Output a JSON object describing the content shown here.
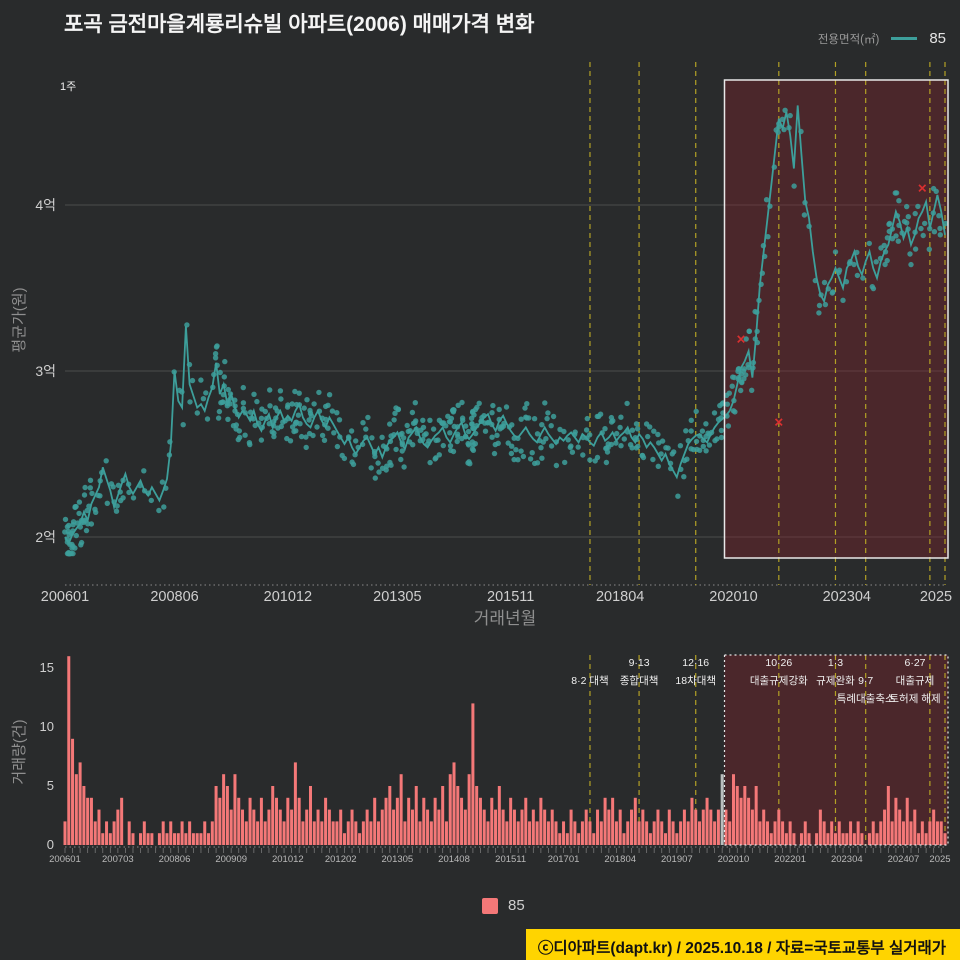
{
  "title": "포곡 금전마을계룡리슈빌 아파트(2006) 매매가격 변화",
  "corner_label": "1주",
  "legend_top": {
    "label": "전용면적(㎡)",
    "value": "85"
  },
  "legend_bottom": {
    "value": "85"
  },
  "footer": "ⓒ디아파트(dapt.kr) / 2025.10.18 / 자료=국토교통부 실거래가",
  "colors": {
    "background": "#292b2c",
    "teal": "#3d9f9b",
    "bar": "#f47878",
    "gray_bar": "#b9bdbd",
    "policy_line": "#b3a125",
    "grid": "#4a4c4d",
    "tick": "#cfcfcf",
    "vol_tick": "#b9b9b9",
    "highlight_fill": "rgba(150,30,42,0.32)",
    "highlight_border": "#e8e8e8",
    "red_x": "#d93030",
    "footer_bg": "#ffd400",
    "annotation_text": "#f0f0f0"
  },
  "chart_data": [
    {
      "type": "line",
      "series_name": "85",
      "unit": "억원",
      "ylabel": "평균가(원)",
      "xlabel": "거래년월",
      "x_start_month": "2006-01",
      "x_end_month": "2025-06",
      "y_ticks": [
        "2억",
        "3억",
        "4억"
      ],
      "y_tick_values_eok": [
        2,
        3,
        4
      ],
      "ylim_eok": [
        1.85,
        4.85
      ],
      "x_tick_labels": [
        "200601",
        "200806",
        "201012",
        "201305",
        "201511",
        "201804",
        "202010",
        "202304",
        "2025"
      ],
      "x_tick_months": [
        0,
        29,
        59,
        88,
        118,
        147,
        177,
        207,
        233
      ],
      "highlight_start_month_index": 177,
      "monthly_avg_eok": [
        2.0,
        1.96,
        2.02,
        2.05,
        2.08,
        2.15,
        2.1,
        2.2,
        2.25,
        2.3,
        2.42,
        2.35,
        2.28,
        2.18,
        2.25,
        2.32,
        2.38,
        2.3,
        2.26,
        2.3,
        2.34,
        2.28,
        2.25,
        2.3,
        2.26,
        2.22,
        2.28,
        2.35,
        2.55,
        3.0,
        2.82,
        2.78,
        3.27,
        2.92,
        2.85,
        2.78,
        2.8,
        2.76,
        2.84,
        2.9,
        3.05,
        2.86,
        2.92,
        2.8,
        2.86,
        2.78,
        2.72,
        2.76,
        2.74,
        2.7,
        2.76,
        2.68,
        2.64,
        2.7,
        2.74,
        2.66,
        2.72,
        2.76,
        2.7,
        2.73,
        2.7,
        2.76,
        2.8,
        2.72,
        2.68,
        2.66,
        2.72,
        2.76,
        2.7,
        2.66,
        2.72,
        2.68,
        2.64,
        2.6,
        2.56,
        2.6,
        2.54,
        2.5,
        2.54,
        2.58,
        2.6,
        2.55,
        2.5,
        2.54,
        2.48,
        2.54,
        2.58,
        2.6,
        2.63,
        2.57,
        2.53,
        2.6,
        2.63,
        2.66,
        2.6,
        2.56,
        2.54,
        2.58,
        2.61,
        2.63,
        2.66,
        2.6,
        2.57,
        2.62,
        2.66,
        2.69,
        2.62,
        2.59,
        2.62,
        2.66,
        2.69,
        2.72,
        2.74,
        2.68,
        2.64,
        2.7,
        2.73,
        2.68,
        2.64,
        2.61,
        2.6,
        2.63,
        2.66,
        2.62,
        2.59,
        2.57,
        2.62,
        2.66,
        2.62,
        2.59,
        2.56,
        2.6,
        2.58,
        2.61,
        2.63,
        2.6,
        2.57,
        2.62,
        2.6,
        2.57,
        2.55,
        2.6,
        2.63,
        2.58,
        2.6,
        2.63,
        2.58,
        2.61,
        2.63,
        2.66,
        2.6,
        2.57,
        2.62,
        2.59,
        2.54,
        2.57,
        2.54,
        2.5,
        2.46,
        2.5,
        2.44,
        2.4,
        2.36,
        2.44,
        2.5,
        2.56,
        2.59,
        2.61,
        2.62,
        2.59,
        2.57,
        2.62,
        2.66,
        2.69,
        2.71,
        2.73,
        2.76,
        2.82,
        2.92,
        3.02,
        3.06,
        3.12,
        2.96,
        3.22,
        3.52,
        3.72,
        3.92,
        4.12,
        4.32,
        4.52,
        4.46,
        4.56,
        4.42,
        4.22,
        4.6,
        4.3,
        4.02,
        3.92,
        3.72,
        3.56,
        3.46,
        3.42,
        3.52,
        3.56,
        3.62,
        3.56,
        3.5,
        3.62,
        3.66,
        3.72,
        3.63,
        3.58,
        3.66,
        3.72,
        3.62,
        3.56,
        3.66,
        3.72,
        3.76,
        3.86,
        3.96,
        3.9,
        3.8,
        3.86,
        3.76,
        3.82,
        3.92,
        3.96,
        4.02,
        3.86,
        3.96,
        4.06,
        3.96,
        3.82
      ],
      "red_x_markers": [
        {
          "month_index": 179,
          "price_eok": 3.19
        },
        {
          "month_index": 189,
          "price_eok": 2.69
        },
        {
          "month_index": 227,
          "price_eok": 4.1
        }
      ]
    },
    {
      "type": "bar",
      "series_name": "85",
      "ylabel": "거래량(건)",
      "y_ticks": [
        0,
        5,
        10,
        15
      ],
      "ylim": [
        0,
        16
      ],
      "x_tick_labels": [
        "200601",
        "200703",
        "200806",
        "200909",
        "201012",
        "201202",
        "201305",
        "201408",
        "201511",
        "201701",
        "201804",
        "201907",
        "202010",
        "202201",
        "202304",
        "202407",
        "2025"
      ],
      "x_tick_months": [
        0,
        14,
        29,
        44,
        59,
        73,
        88,
        103,
        118,
        132,
        147,
        162,
        177,
        192,
        207,
        222,
        233
      ],
      "gray_bar_month_index": 174,
      "monthly_volume": [
        2,
        16,
        9,
        6,
        7,
        5,
        4,
        4,
        2,
        3,
        1,
        2,
        1,
        2,
        3,
        4,
        0,
        2,
        1,
        0,
        1,
        2,
        1,
        1,
        0,
        1,
        2,
        1,
        2,
        1,
        1,
        2,
        1,
        2,
        1,
        1,
        1,
        2,
        1,
        2,
        5,
        4,
        6,
        5,
        3,
        6,
        4,
        3,
        2,
        4,
        3,
        2,
        4,
        2,
        3,
        5,
        4,
        3,
        2,
        4,
        3,
        7,
        4,
        2,
        3,
        5,
        2,
        3,
        2,
        4,
        3,
        2,
        2,
        3,
        1,
        2,
        3,
        2,
        1,
        2,
        3,
        2,
        4,
        2,
        3,
        4,
        5,
        3,
        4,
        6,
        2,
        4,
        3,
        5,
        2,
        4,
        3,
        2,
        4,
        3,
        5,
        2,
        6,
        7,
        5,
        4,
        3,
        6,
        12,
        5,
        4,
        3,
        2,
        4,
        3,
        5,
        3,
        2,
        4,
        3,
        2,
        3,
        4,
        2,
        3,
        2,
        4,
        3,
        2,
        3,
        2,
        1,
        2,
        1,
        3,
        2,
        1,
        2,
        3,
        2,
        1,
        3,
        2,
        4,
        3,
        4,
        2,
        3,
        1,
        2,
        3,
        4,
        2,
        3,
        2,
        1,
        2,
        3,
        2,
        1,
        3,
        2,
        1,
        2,
        3,
        2,
        4,
        3,
        2,
        3,
        4,
        3,
        2,
        3,
        6,
        3,
        2,
        6,
        5,
        4,
        5,
        4,
        3,
        5,
        2,
        3,
        2,
        1,
        2,
        3,
        2,
        1,
        2,
        1,
        0,
        1,
        2,
        1,
        0,
        1,
        3,
        2,
        1,
        2,
        1,
        2,
        1,
        1,
        2,
        1,
        2,
        1,
        0,
        1,
        2,
        1,
        2,
        3,
        5,
        2,
        4,
        3,
        2,
        4,
        2,
        3,
        1,
        2,
        1,
        2,
        3,
        2,
        2,
        1
      ]
    }
  ],
  "policies": [
    {
      "month_index": 139,
      "lines": [
        "8·2 대책"
      ],
      "row": 1
    },
    {
      "month_index": 152,
      "lines": [
        "9·13",
        "종합대책"
      ],
      "row": 0
    },
    {
      "month_index": 167,
      "lines": [
        "12·16",
        "18차대책"
      ],
      "row": 0
    },
    {
      "month_index": 189,
      "lines": [
        "10·26",
        "대출규제강화"
      ],
      "row": 0
    },
    {
      "month_index": 204,
      "lines": [
        "1·3",
        "규제완화"
      ],
      "row": 0
    },
    {
      "month_index": 212,
      "lines": [
        "9·7",
        "특례대출축소"
      ],
      "row": 1
    },
    {
      "month_index": 229,
      "lines": [
        "토허제 해제"
      ],
      "row": 2
    },
    {
      "month_index": 233,
      "lines": [
        "6·27",
        "대출규제"
      ],
      "row": 0
    }
  ]
}
